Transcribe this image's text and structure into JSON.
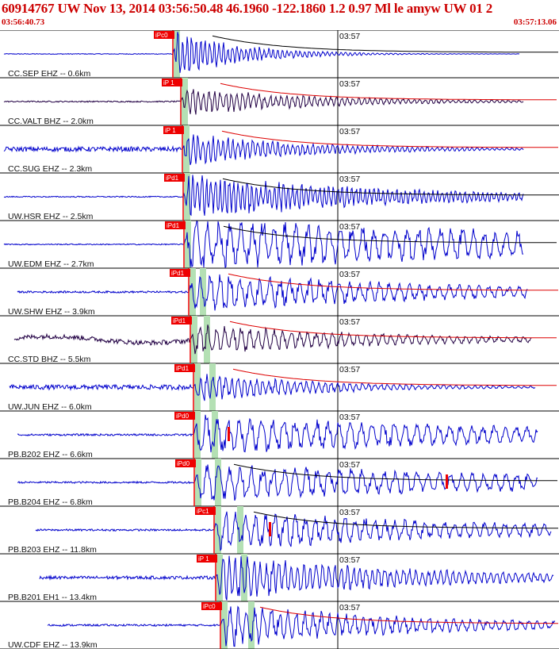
{
  "header": {
    "title": "60914767 UW Nov 13, 2014 03:56:50.48    46.1960 -122.1860  1.2 0.97 Ml le amyw UW 01   2",
    "start_time": "03:56:40.73",
    "end_time": "03:57:13.06"
  },
  "colors": {
    "trace_blue": "#0000cc",
    "trace_dark": "#220044",
    "pick_red": "#ee0000",
    "window_green": "#b4e0b4",
    "coda_black": "#000000",
    "coda_red": "#dd0000"
  },
  "chart_data": {
    "type": "seismogram",
    "time_axis": {
      "start": "03:56:40.73",
      "end": "03:57:13.06",
      "minute_tick": "03:57"
    },
    "traces": [
      {
        "label": "CC.SEP EHZ -- 0.6km",
        "pick": "iPc0",
        "color": "blue",
        "coda": "black"
      },
      {
        "label": "CC.VALT BHZ -- 2.0km",
        "pick": "iP 1",
        "color": "dark",
        "coda": "red"
      },
      {
        "label": "CC.SUG EHZ -- 2.3km",
        "pick": "iP 1",
        "color": "blue",
        "coda": "red"
      },
      {
        "label": "UW.HSR EHZ -- 2.5km",
        "pick": "iPd1",
        "color": "blue",
        "coda": "black"
      },
      {
        "label": "UW.EDM EHZ -- 2.7km",
        "pick": "iPd1",
        "color": "blue",
        "coda": "black"
      },
      {
        "label": "UW.SHW EHZ -- 3.9km",
        "pick": "iPd1",
        "color": "blue",
        "coda": "red"
      },
      {
        "label": "CC.STD BHZ -- 5.5km",
        "pick": "iPd1",
        "color": "dark",
        "coda": "red"
      },
      {
        "label": "UW.JUN EHZ -- 6.0km",
        "pick": "iPd1",
        "color": "blue",
        "coda": "red"
      },
      {
        "label": "PB.B202 EHZ -- 6.6km",
        "pick": "iPd0",
        "color": "blue",
        "coda": "none"
      },
      {
        "label": "PB.B204 EHZ -- 6.8km",
        "pick": "iPd0",
        "color": "blue",
        "coda": "black"
      },
      {
        "label": "PB.B203 EHZ -- 11.8km",
        "pick": "iPc1",
        "color": "blue",
        "coda": "black"
      },
      {
        "label": "PB.B201 EH1 -- 13.4km",
        "pick": "iP 1",
        "color": "blue",
        "coda": "none"
      },
      {
        "label": "UW.CDF EHZ -- 13.9km",
        "pick": "iPc0",
        "color": "blue",
        "coda": "red"
      }
    ]
  }
}
